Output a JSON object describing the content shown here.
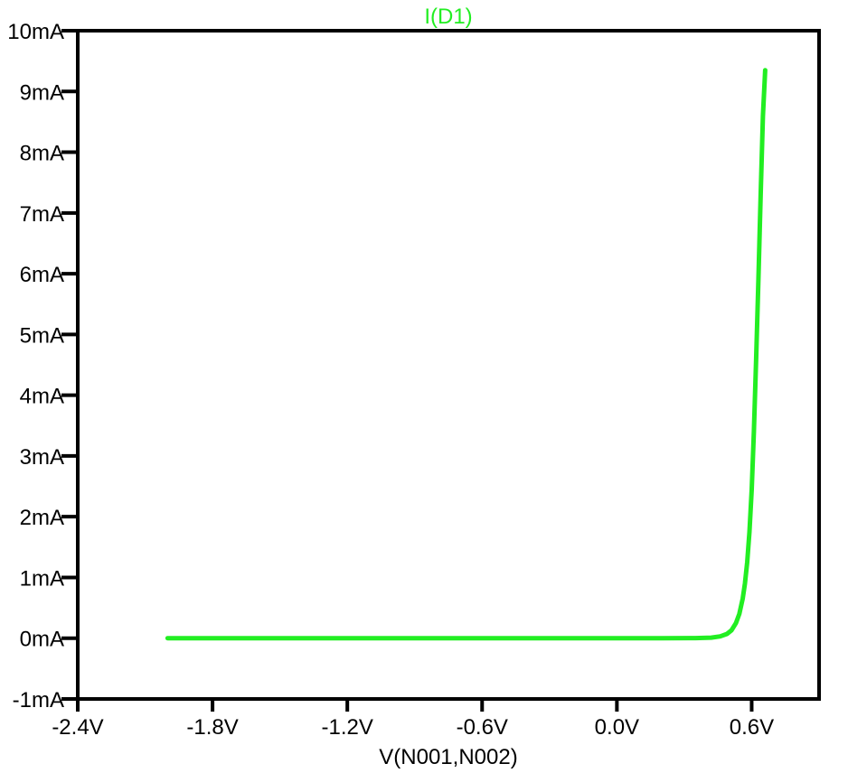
{
  "chart_data": {
    "type": "line",
    "title": "I(D1)",
    "xlabel": "V(N001,N002)",
    "ylabel": "",
    "xlim": [
      -2.4,
      0.9
    ],
    "ylim": [
      -1,
      10
    ],
    "grid": false,
    "x_ticks": [
      {
        "value": -2.4,
        "label": "-2.4V"
      },
      {
        "value": -1.8,
        "label": "-1.8V"
      },
      {
        "value": -1.2,
        "label": "-1.2V"
      },
      {
        "value": -0.6,
        "label": "-0.6V"
      },
      {
        "value": 0.0,
        "label": "0.0V"
      },
      {
        "value": 0.6,
        "label": "0.6V"
      }
    ],
    "y_ticks": [
      {
        "value": -1,
        "label": "-1mA"
      },
      {
        "value": 0,
        "label": "0mA"
      },
      {
        "value": 1,
        "label": "1mA"
      },
      {
        "value": 2,
        "label": "2mA"
      },
      {
        "value": 3,
        "label": "3mA"
      },
      {
        "value": 4,
        "label": "4mA"
      },
      {
        "value": 5,
        "label": "5mA"
      },
      {
        "value": 6,
        "label": "6mA"
      },
      {
        "value": 7,
        "label": "7mA"
      },
      {
        "value": 8,
        "label": "8mA"
      },
      {
        "value": 9,
        "label": "9mA"
      },
      {
        "value": 10,
        "label": "10mA"
      }
    ],
    "series": [
      {
        "name": "I(D1)",
        "color": "#22ee22",
        "x": [
          -2.0,
          -1.5,
          -1.0,
          -0.5,
          0.0,
          0.2,
          0.35,
          0.42,
          0.46,
          0.49,
          0.51,
          0.53,
          0.545,
          0.56,
          0.57,
          0.58,
          0.59,
          0.6,
          0.61,
          0.62,
          0.63,
          0.64,
          0.65,
          0.66
        ],
        "y": [
          0,
          0,
          0,
          0,
          0,
          0,
          0.002,
          0.01,
          0.03,
          0.07,
          0.13,
          0.25,
          0.4,
          0.65,
          0.9,
          1.25,
          1.75,
          2.45,
          3.4,
          4.6,
          5.9,
          7.3,
          8.6,
          9.35
        ]
      }
    ]
  },
  "style": {
    "trace_color": "#22ee22",
    "axis_color": "#000000",
    "background": "#ffffff"
  }
}
